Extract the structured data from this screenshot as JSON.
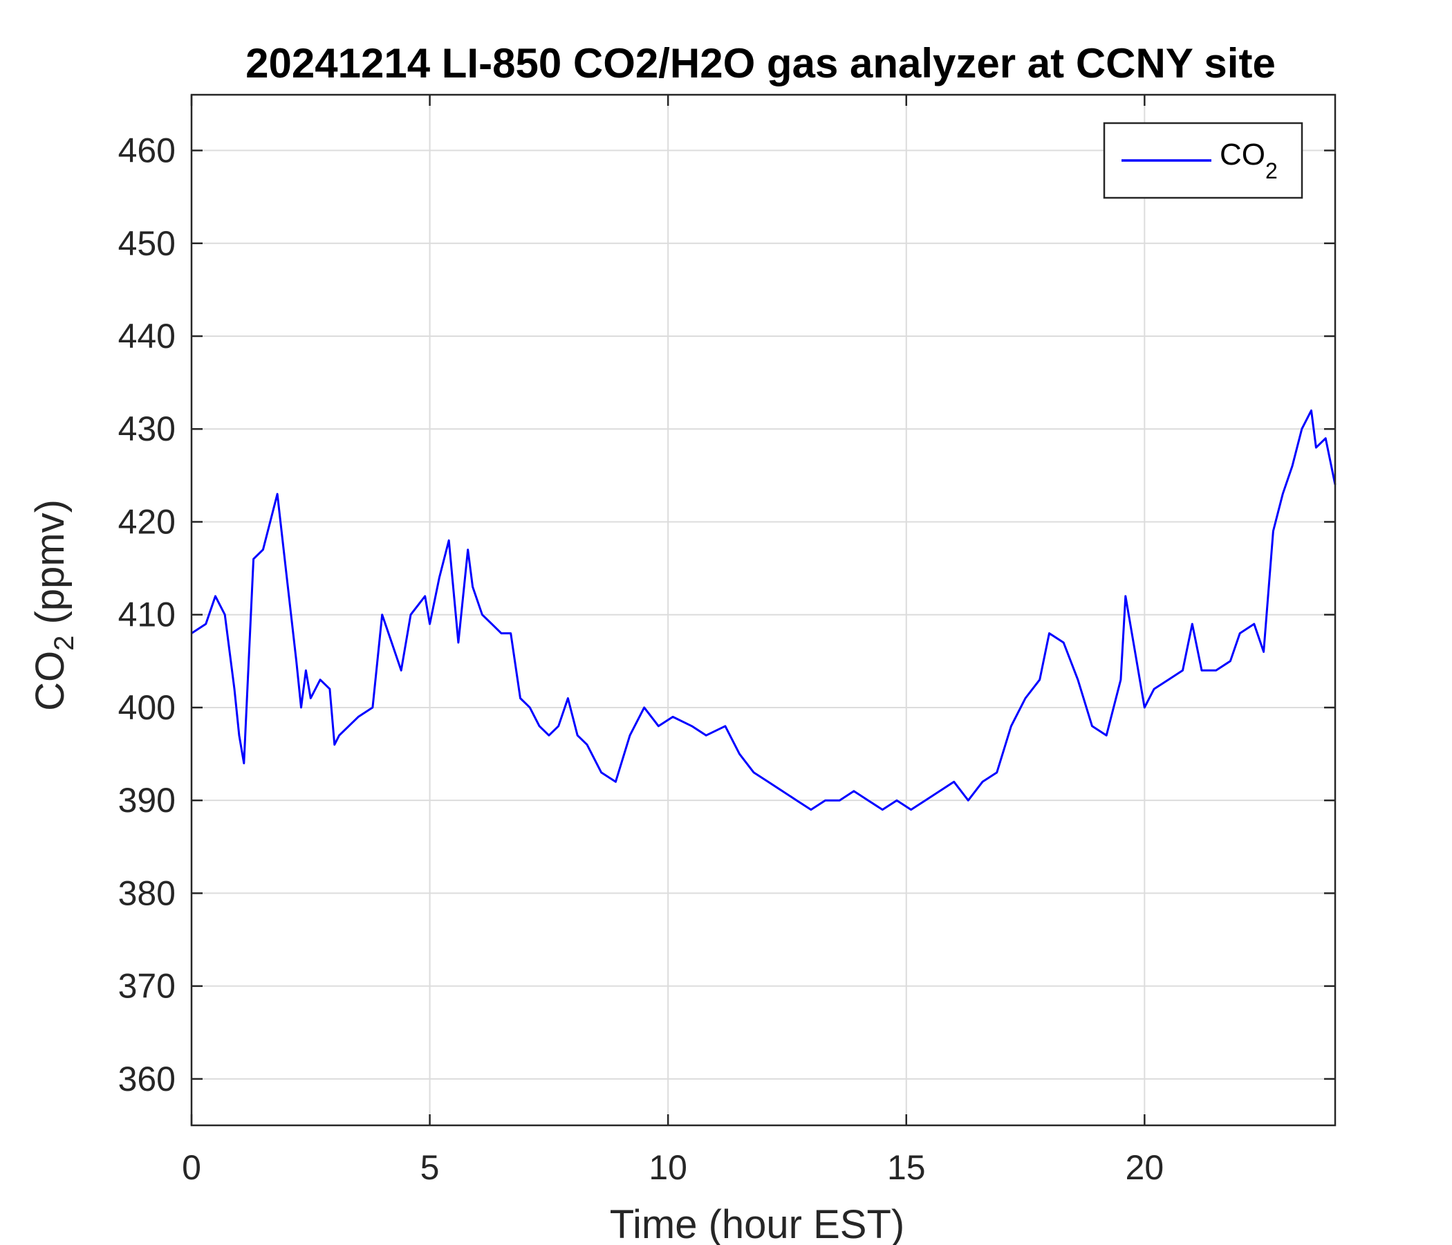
{
  "chart_data": {
    "type": "line",
    "title": "20241214 LI-850 CO2/H2O gas analyzer at CCNY site",
    "xlabel": "Time (hour EST)",
    "ylabel": {
      "main": "CO",
      "sub": "2",
      "suffix": " (ppmv)"
    },
    "xlim": [
      0,
      24
    ],
    "ylim": [
      355,
      466
    ],
    "xticks": [
      0,
      5,
      10,
      15,
      20
    ],
    "yticks": [
      360,
      370,
      380,
      390,
      400,
      410,
      420,
      430,
      440,
      450,
      460
    ],
    "grid": true,
    "legend_position": "top-right",
    "series": [
      {
        "name": {
          "main": "CO",
          "sub": "2"
        },
        "color": "#0000ff",
        "x": [
          0,
          0.3,
          0.5,
          0.7,
          0.8,
          0.9,
          1.0,
          1.1,
          1.2,
          1.3,
          1.5,
          1.7,
          1.8,
          2.0,
          2.2,
          2.3,
          2.4,
          2.5,
          2.7,
          2.9,
          3.0,
          3.1,
          3.3,
          3.5,
          3.8,
          4.0,
          4.2,
          4.4,
          4.6,
          4.9,
          5.0,
          5.2,
          5.4,
          5.6,
          5.8,
          5.9,
          6.1,
          6.3,
          6.5,
          6.7,
          6.9,
          7.1,
          7.3,
          7.5,
          7.7,
          7.9,
          8.1,
          8.3,
          8.6,
          8.9,
          9.2,
          9.5,
          9.8,
          10.1,
          10.5,
          10.8,
          11.2,
          11.5,
          11.8,
          12.1,
          12.4,
          12.7,
          13.0,
          13.3,
          13.6,
          13.9,
          14.2,
          14.5,
          14.8,
          15.1,
          15.4,
          15.7,
          16.0,
          16.3,
          16.6,
          16.9,
          17.2,
          17.5,
          17.8,
          18.0,
          18.3,
          18.6,
          18.9,
          19.2,
          19.5,
          19.6,
          19.8,
          20.0,
          20.2,
          20.5,
          20.8,
          21.0,
          21.2,
          21.5,
          21.8,
          22.0,
          22.3,
          22.5,
          22.7,
          22.9,
          23.1,
          23.3,
          23.5,
          23.6,
          23.8,
          24.0
        ],
        "y": [
          408,
          409,
          412,
          410,
          406,
          402,
          397,
          394,
          405,
          416,
          417,
          421,
          423,
          414,
          405,
          400,
          404,
          401,
          403,
          402,
          396,
          397,
          398,
          399,
          400,
          410,
          407,
          404,
          410,
          412,
          409,
          414,
          418,
          407,
          417,
          413,
          410,
          409,
          408,
          408,
          401,
          400,
          398,
          397,
          398,
          401,
          397,
          396,
          393,
          392,
          397,
          400,
          398,
          399,
          398,
          397,
          398,
          395,
          393,
          392,
          391,
          390,
          389,
          390,
          390,
          391,
          390,
          389,
          390,
          389,
          390,
          391,
          392,
          390,
          392,
          393,
          398,
          401,
          403,
          408,
          407,
          403,
          398,
          397,
          403,
          412,
          406,
          400,
          402,
          403,
          404,
          409,
          404,
          404,
          405,
          408,
          409,
          406,
          419,
          423,
          426,
          430,
          432,
          428,
          429,
          424
        ]
      }
    ]
  }
}
